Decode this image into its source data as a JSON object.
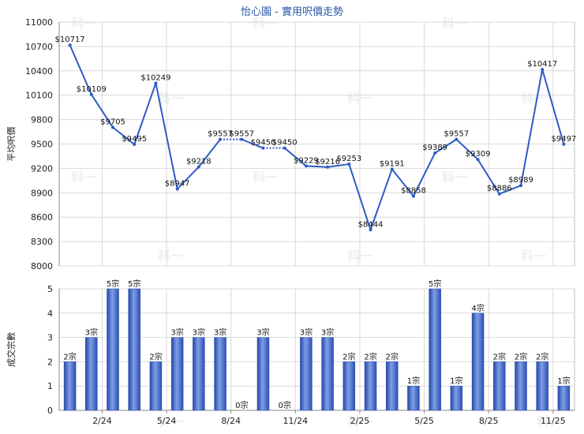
{
  "title": "怡心園 - 實用呎價走勢",
  "watermark": "科一",
  "chart_data": [
    {
      "type": "line",
      "title": "怡心園 - 實用呎價走勢",
      "ylabel": "平均呎價",
      "ylim": [
        8000,
        11000
      ],
      "yticks": [
        8000,
        8300,
        8600,
        8900,
        9200,
        9500,
        9800,
        10100,
        10400,
        10700,
        11000
      ],
      "grid": true,
      "line_color": "#2e5bc4",
      "points": [
        {
          "i": 0,
          "value": 10717,
          "label": "$10717"
        },
        {
          "i": 1,
          "value": 10109,
          "label": "$10109"
        },
        {
          "i": 2,
          "value": 9705,
          "label": "$9705"
        },
        {
          "i": 3,
          "value": 9495,
          "label": "$9495"
        },
        {
          "i": 4,
          "value": 10249,
          "label": "$10249"
        },
        {
          "i": 5,
          "value": 8947,
          "label": "$8947"
        },
        {
          "i": 6,
          "value": 9218,
          "label": "$9218"
        },
        {
          "i": 7,
          "value": 9557,
          "label": "$9557"
        },
        {
          "i": 8,
          "value": 9557,
          "label": "$9557"
        },
        {
          "i": 9,
          "value": 9450,
          "label": "$9450"
        },
        {
          "i": 10,
          "value": 9450,
          "label": "$9450"
        },
        {
          "i": 11,
          "value": 9229,
          "label": "$9229"
        },
        {
          "i": 12,
          "value": 9216,
          "label": "$9216"
        },
        {
          "i": 13,
          "value": 9253,
          "label": "$9253"
        },
        {
          "i": 14,
          "value": 8444,
          "label": "$8444"
        },
        {
          "i": 15,
          "value": 9191,
          "label": "$9191"
        },
        {
          "i": 16,
          "value": 8858,
          "label": "$8858"
        },
        {
          "i": 17,
          "value": 9389,
          "label": "$9389"
        },
        {
          "i": 18,
          "value": 9557,
          "label": "$9557"
        },
        {
          "i": 19,
          "value": 9309,
          "label": "$9309"
        },
        {
          "i": 20,
          "value": 8886,
          "label": "$8886"
        },
        {
          "i": 21,
          "value": 8989,
          "label": "$8989"
        },
        {
          "i": 22,
          "value": 10417,
          "label": "$10417"
        },
        {
          "i": 23,
          "value": 9497,
          "label": "$9497"
        }
      ],
      "dotted_segments": [
        [
          7,
          8
        ],
        [
          9,
          10
        ]
      ]
    },
    {
      "type": "bar",
      "ylabel": "成交宗數",
      "ylim": [
        0,
        5
      ],
      "yticks": [
        0,
        1,
        2,
        3,
        4,
        5
      ],
      "bar_color": "#3a64c8",
      "x_ticks": [
        "2/24",
        "5/24",
        "8/24",
        "11/24",
        "2/25",
        "5/25",
        "8/25",
        "11/25"
      ],
      "x_tick_positions": [
        2,
        5,
        8,
        11,
        14,
        17,
        20,
        23
      ],
      "values": [
        2,
        3,
        5,
        5,
        2,
        3,
        3,
        3,
        0,
        3,
        0,
        3,
        3,
        2,
        2,
        2,
        1,
        5,
        1,
        4,
        2,
        2,
        2,
        1
      ],
      "labels": [
        "2宗",
        "3宗",
        "5宗",
        "5宗",
        "2宗",
        "3宗",
        "3宗",
        "3宗",
        "0宗",
        "3宗",
        "0宗",
        "3宗",
        "3宗",
        "2宗",
        "2宗",
        "2宗",
        "1宗",
        "5宗",
        "1宗",
        "4宗",
        "2宗",
        "2宗",
        "2宗",
        "1宗"
      ]
    }
  ]
}
